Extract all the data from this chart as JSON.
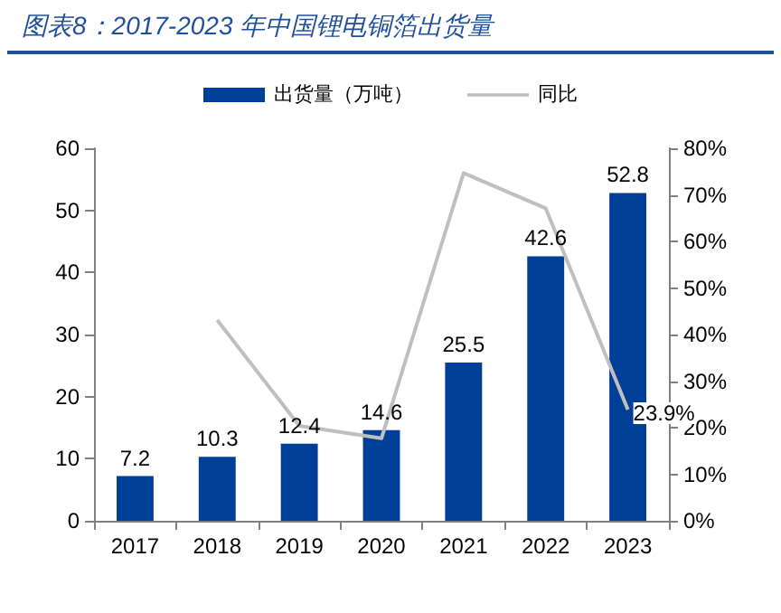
{
  "chart_data": {
    "type": "bar",
    "title": "图表8：2017-2023 年中国锂电铜箔出货量",
    "categories": [
      "2017",
      "2018",
      "2019",
      "2020",
      "2021",
      "2022",
      "2023"
    ],
    "series": [
      {
        "name": "出货量（万吨）",
        "type": "bar",
        "color": "#003f98",
        "values": [
          7.2,
          10.3,
          12.4,
          14.6,
          25.5,
          42.6,
          52.8
        ],
        "value_labels": [
          "7.2",
          "10.3",
          "12.4",
          "14.6",
          "25.5",
          "42.6",
          "52.8"
        ]
      },
      {
        "name": "同比",
        "type": "line",
        "axis": "y2",
        "color": "#bfbfbf",
        "values": [
          null,
          43.1,
          20.4,
          17.7,
          74.7,
          67.1,
          23.9
        ],
        "value_labels": [
          null,
          null,
          null,
          null,
          null,
          null,
          "23.9%"
        ]
      }
    ],
    "ylim": [
      0,
      60
    ],
    "yticks": [
      0,
      10,
      20,
      30,
      40,
      50,
      60
    ],
    "y2lim": [
      0,
      80
    ],
    "y2ticks": [
      {
        "value": 0,
        "label": "0%"
      },
      {
        "value": 10,
        "label": "10%"
      },
      {
        "value": 20,
        "label": "20%"
      },
      {
        "value": 30,
        "label": "30%"
      },
      {
        "value": 40,
        "label": "40%"
      },
      {
        "value": 50,
        "label": "50%"
      },
      {
        "value": 60,
        "label": "60%"
      },
      {
        "value": 70,
        "label": "70%"
      },
      {
        "value": 80,
        "label": "80%"
      }
    ],
    "legend": "top",
    "grid": false,
    "marker": "none"
  }
}
